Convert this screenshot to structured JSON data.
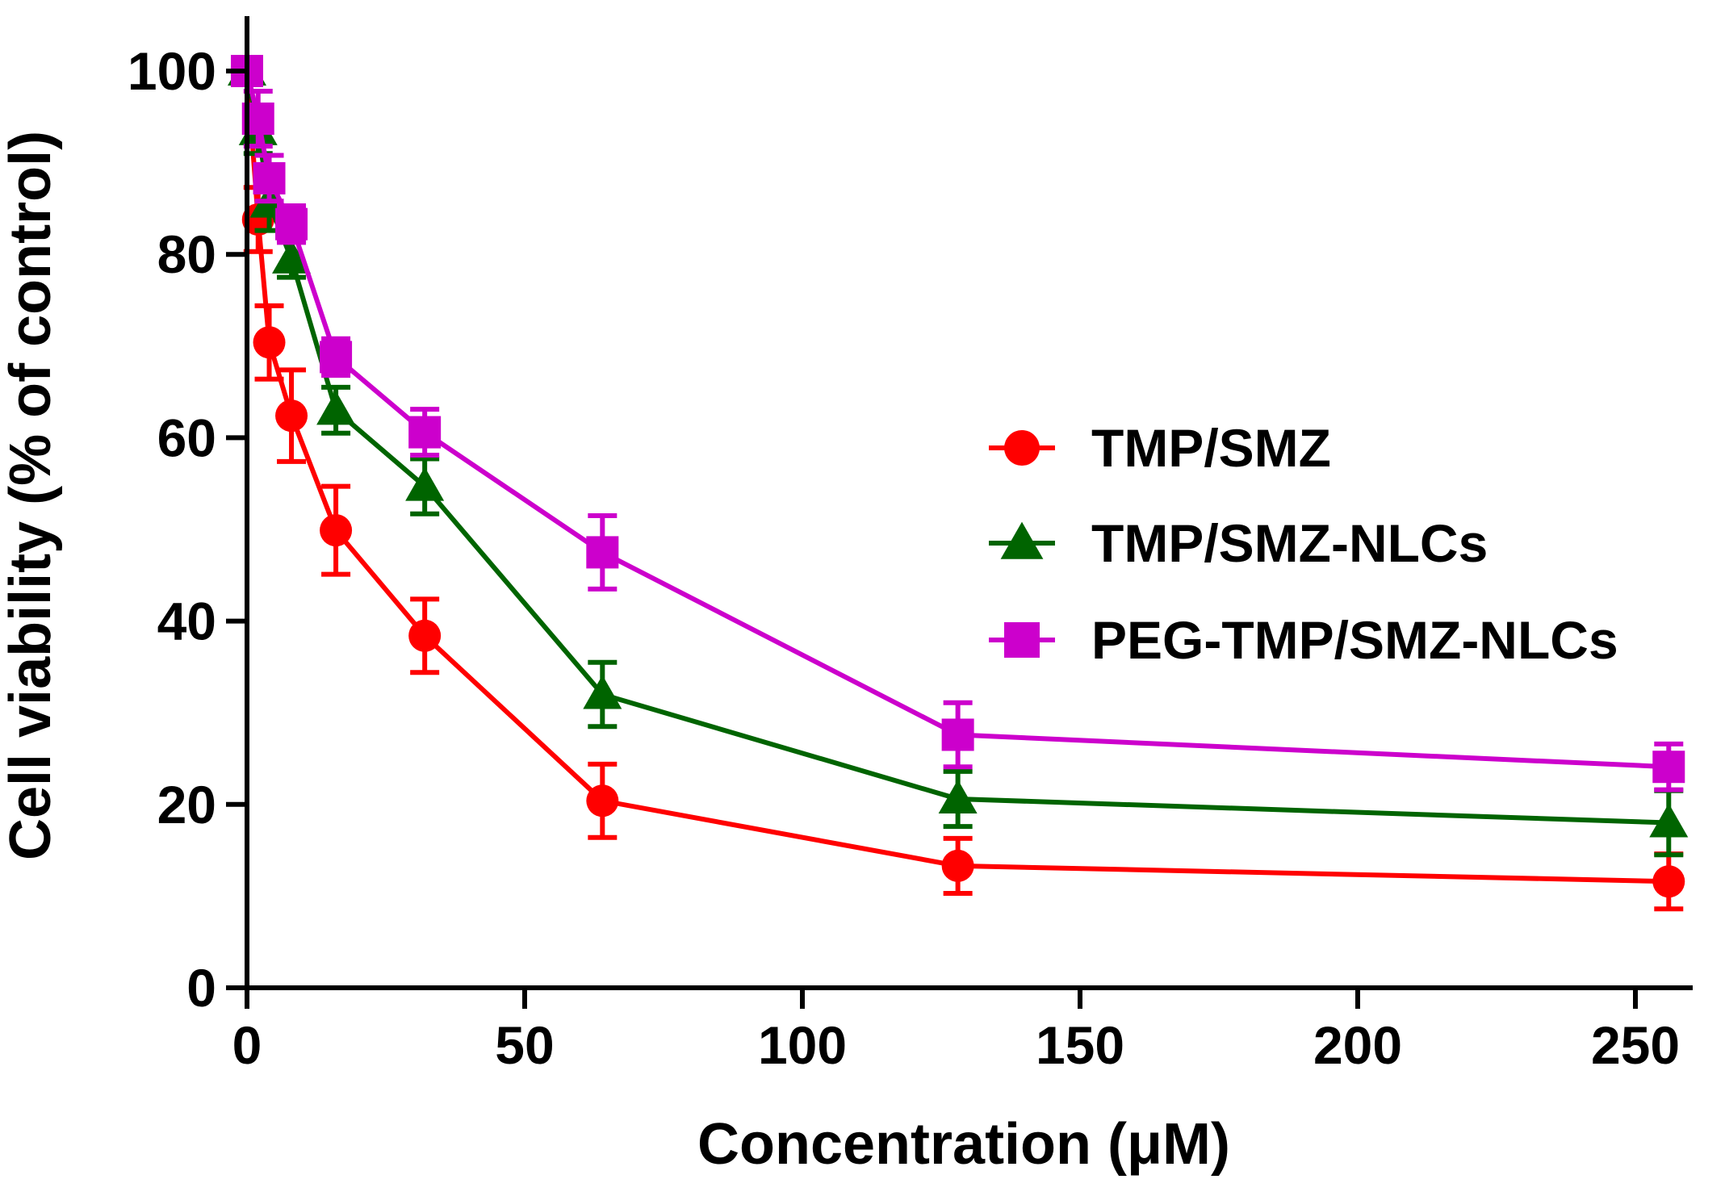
{
  "chart_data": {
    "type": "line",
    "title": "",
    "xlabel": "Concentration (μM)",
    "ylabel": "Cell viability (% of control)",
    "xlim": [
      0,
      260
    ],
    "ylim": [
      0,
      105
    ],
    "xticks": [
      0,
      50,
      100,
      150,
      200,
      250
    ],
    "yticks": [
      0,
      20,
      40,
      60,
      80,
      100
    ],
    "x": [
      0,
      2,
      4,
      8,
      16,
      32,
      64,
      128,
      256
    ],
    "grid": false,
    "legend_position": "right",
    "error_bars": true,
    "series": [
      {
        "name": "TMP/SMZ",
        "marker": "circle",
        "color": "#ff0000",
        "values": [
          100,
          83.8,
          70.4,
          62.4,
          49.9,
          38.4,
          20.4,
          13.3,
          11.6
        ],
        "errors": [
          1.0,
          3.5,
          4.0,
          5.0,
          4.8,
          4.0,
          4.0,
          3.0,
          3.0
        ]
      },
      {
        "name": "TMP/SMZ-NLCs",
        "marker": "triangle",
        "color": "#006400",
        "values": [
          100,
          93.5,
          85.6,
          79.5,
          63.0,
          54.7,
          32.0,
          20.6,
          18.0
        ],
        "errors": [
          1.0,
          2.5,
          3.0,
          2.0,
          2.5,
          3.0,
          3.5,
          3.0,
          3.5
        ]
      },
      {
        "name": "PEG-TMP/SMZ-NLCs",
        "marker": "square",
        "color": "#cc00cc",
        "values": [
          100,
          94.8,
          88.3,
          83.3,
          68.8,
          60.6,
          47.5,
          27.6,
          24.1
        ],
        "errors": [
          1.0,
          3.0,
          2.5,
          2.0,
          2.0,
          2.5,
          4.0,
          3.5,
          2.5
        ]
      }
    ]
  }
}
